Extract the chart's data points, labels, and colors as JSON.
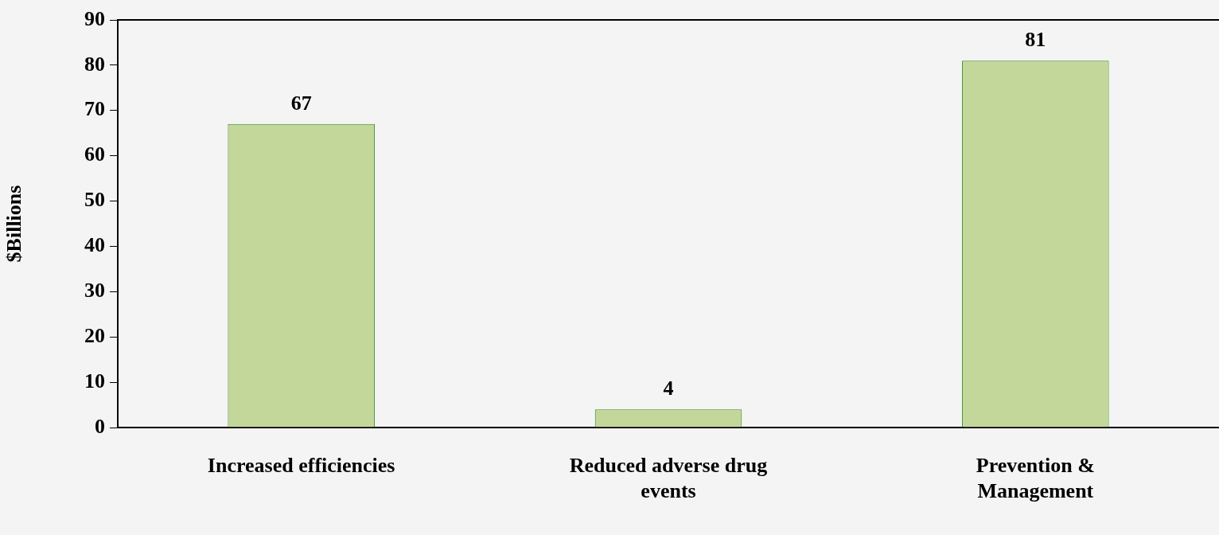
{
  "chart_data": {
    "type": "bar",
    "ylabel": "$Billions",
    "categories": [
      "Increased efficiencies",
      "Reduced adverse drug events",
      "Prevention & Management"
    ],
    "values": [
      67,
      4,
      81
    ],
    "color": "#c4d79b",
    "ylim": [
      0,
      90
    ],
    "yticks": [
      0,
      10,
      20,
      30,
      40,
      50,
      60,
      70,
      80,
      90
    ],
    "grid": false,
    "legend": false,
    "data_labels": true
  }
}
